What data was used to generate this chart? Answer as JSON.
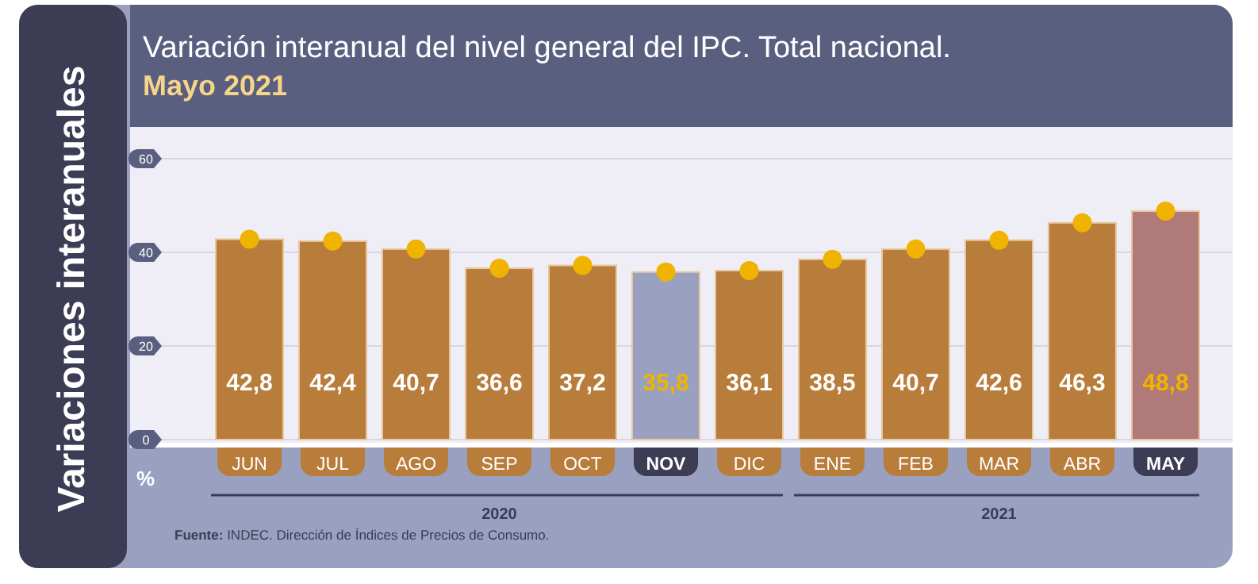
{
  "chart_data": {
    "type": "bar",
    "title": "Variación interanual del nivel general del IPC. Total nacional.",
    "subtitle": "Mayo 2021",
    "ylabel": "Variaciones interanuales",
    "categories": [
      "JUN",
      "JUL",
      "AGO",
      "SEP",
      "OCT",
      "NOV",
      "DIC",
      "ENE",
      "FEB",
      "MAR",
      "ABR",
      "MAY"
    ],
    "series": [
      {
        "colors": [
          "#b87d3b",
          "#b87d3b",
          "#b87d3b",
          "#b87d3b",
          "#b87d3b",
          "#9aa0bf",
          "#b87d3b",
          "#b87d3b",
          "#b87d3b",
          "#b87d3b",
          "#b87d3b",
          "#b07a78"
        ],
        "values": [
          42.8,
          42.4,
          40.7,
          36.6,
          37.2,
          35.8,
          36.1,
          38.5,
          40.7,
          42.6,
          46.3,
          48.8
        ],
        "value_labels": [
          "42,8",
          "42,4",
          "40,7",
          "36,6",
          "37,2",
          "35,8",
          "36,1",
          "38,5",
          "40,7",
          "42,6",
          "46,3",
          "48,8"
        ]
      },
      {
        "type": "scatter",
        "color": "#f0b400",
        "values": [
          42.8,
          42.4,
          40.7,
          36.6,
          37.2,
          35.8,
          36.1,
          38.5,
          40.7,
          42.6,
          46.3,
          48.8
        ]
      }
    ],
    "ylim": [
      0,
      60
    ],
    "yticks": [
      0,
      20,
      40,
      60
    ],
    "grid": "y",
    "marker": "circle",
    "annotations": [
      "%",
      "2020",
      "2021",
      "Fuente: INDEC. Dirección de Índices de Precios de Consumo."
    ]
  }
}
